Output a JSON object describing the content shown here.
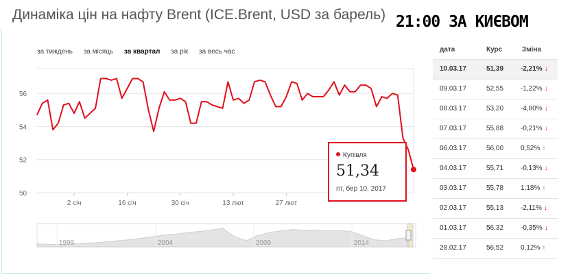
{
  "title": "Динаміка цін на нафту Brent (ICE.Brent, USD за барель)",
  "overlay_text": "21:00 ЗА КИЄВОМ",
  "range_tabs": [
    {
      "label": "за тиждень",
      "active": false
    },
    {
      "label": "за місяць",
      "active": false
    },
    {
      "label": "за квартал",
      "active": true
    },
    {
      "label": "за рік",
      "active": false
    },
    {
      "label": "за весь час",
      "active": false
    }
  ],
  "colors": {
    "line": "#e0101c",
    "up": "#2ea84a",
    "down": "#e0101c",
    "frame": "#bfe6da"
  },
  "chart_data": {
    "type": "line",
    "ylim": [
      50,
      57.5
    ],
    "yticks": [
      50,
      52,
      54,
      56
    ],
    "x_tick_labels": [
      "2 січ",
      "16 січ",
      "30 січ",
      "13 лют",
      "27 лют"
    ],
    "x_tick_index": [
      7,
      17,
      27,
      37,
      47
    ],
    "series": [
      {
        "values": [
          54.7,
          55.4,
          55.6,
          53.8,
          54.2,
          55.3,
          55.4,
          54.8,
          55.5,
          54.5,
          54.8,
          55.1,
          56.9,
          56.9,
          56.8,
          56.9,
          55.7,
          56.3,
          56.9,
          56.9,
          56.7,
          55.0,
          53.7,
          55.1,
          56.1,
          55.6,
          55.6,
          55.7,
          55.5,
          54.2,
          54.2,
          55.5,
          55.5,
          55.3,
          55.2,
          55.1,
          56.7,
          55.6,
          55.7,
          55.4,
          55.6,
          56.7,
          56.8,
          56.7,
          55.9,
          55.2,
          55.2,
          55.8,
          56.7,
          56.6,
          55.6,
          56.0,
          55.8,
          55.8,
          55.8,
          56.2,
          56.7,
          55.9,
          56.5,
          56.1,
          56.1,
          56.5,
          56.5,
          56.3,
          55.2,
          55.8,
          55.7,
          56.0,
          55.9,
          53.3,
          52.6,
          51.4
        ]
      }
    ],
    "navigator": {
      "labels": [
        "1999",
        "2004",
        "2009",
        "2014"
      ]
    },
    "tooltip": {
      "label": "Купівля",
      "value": "51,34",
      "date": "пт, бер 10, 2017"
    }
  },
  "table": {
    "headers": [
      "дата",
      "Курс",
      "Зміна"
    ],
    "rows": [
      {
        "date": "10.03.17",
        "rate": "51,39",
        "change": "-2,21%",
        "dir": "down"
      },
      {
        "date": "09.03.17",
        "rate": "52,55",
        "change": "-1,22%",
        "dir": "down"
      },
      {
        "date": "08.03.17",
        "rate": "53,20",
        "change": "-4,80%",
        "dir": "down"
      },
      {
        "date": "07.03.17",
        "rate": "55,88",
        "change": "-0,21%",
        "dir": "down"
      },
      {
        "date": "06.03.17",
        "rate": "56,00",
        "change": "0,52%",
        "dir": "up"
      },
      {
        "date": "04.03.17",
        "rate": "55,71",
        "change": "-0,13%",
        "dir": "down"
      },
      {
        "date": "03.03.17",
        "rate": "55,78",
        "change": "1,18%",
        "dir": "up"
      },
      {
        "date": "02.03.17",
        "rate": "55,13",
        "change": "-2,11%",
        "dir": "down"
      },
      {
        "date": "01.03.17",
        "rate": "56,32",
        "change": "-0,35%",
        "dir": "down"
      },
      {
        "date": "28.02.17",
        "rate": "56,52",
        "change": "0,12%",
        "dir": "up"
      }
    ]
  }
}
